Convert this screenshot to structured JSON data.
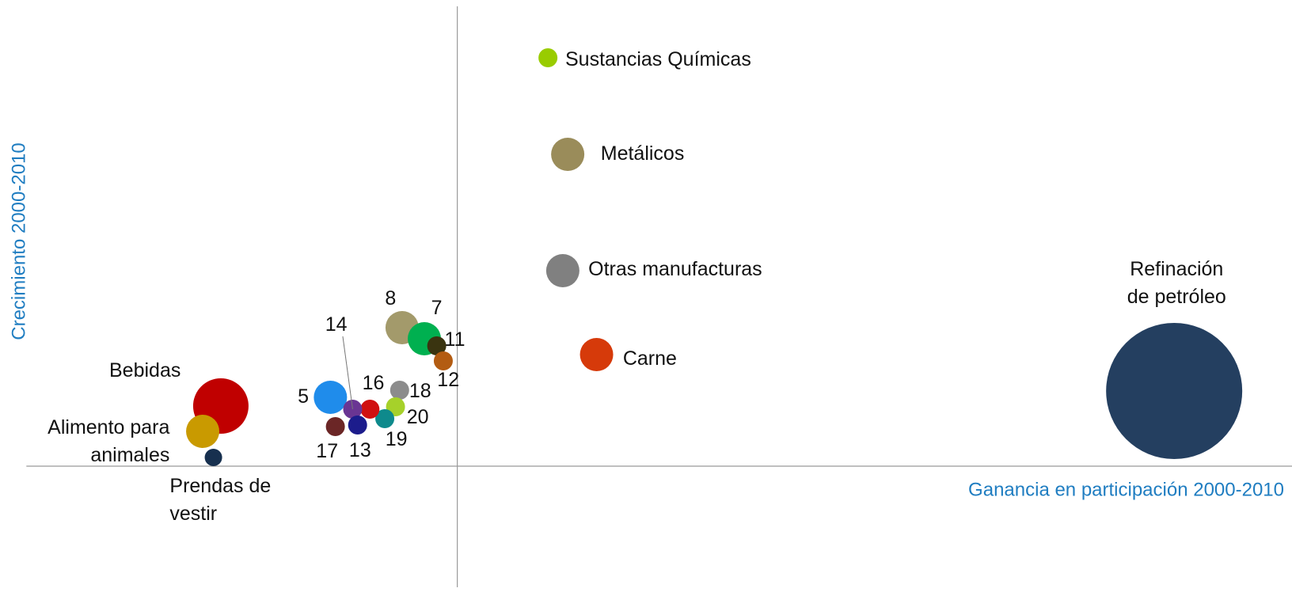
{
  "chart_data": {
    "type": "bubble",
    "x_label": "Ganancia en participación 2000-2010",
    "y_label": "Crecimiento 2000-2010",
    "xlim": [
      -52.3,
      101.3
    ],
    "ylim": [
      -15.3,
      58.1
    ],
    "points": [
      {
        "name": [
          "Sustancias Químicas"
        ],
        "x": 11.0,
        "y": 51.6,
        "size": 1.2,
        "color": "#99cc00"
      },
      {
        "name": [
          "Metálicos"
        ],
        "x": 13.4,
        "y": 39.4,
        "size": 2.1,
        "color": "#9a8c5a"
      },
      {
        "name": [
          "Otras manufacturas"
        ],
        "x": 12.8,
        "y": 24.7,
        "size": 2.1,
        "color": "#808080"
      },
      {
        "name": [
          "Carne"
        ],
        "x": 16.9,
        "y": 14.1,
        "size": 2.1,
        "color": "#d63a0a"
      },
      {
        "name": [
          "Refinación",
          "de petróleo"
        ],
        "x": 87.0,
        "y": 9.5,
        "size": 8.6,
        "color": "#243f60"
      },
      {
        "name": [
          "Bebidas"
        ],
        "x": -28.7,
        "y": 7.6,
        "size": 3.5,
        "color": "#c00000"
      },
      {
        "name": [
          "Alimento para",
          "animales"
        ],
        "x": -30.9,
        "y": 4.4,
        "size": 2.1,
        "color": "#c99a00"
      },
      {
        "name": [
          "Prendas de",
          "vestir"
        ],
        "x": -29.6,
        "y": 1.1,
        "size": 1.1,
        "color": "#17304f"
      },
      {
        "name": [
          "5"
        ],
        "x": -15.4,
        "y": 8.7,
        "size": 2.1,
        "color": "#1f8ceb"
      },
      {
        "name": [
          "8"
        ],
        "x": -6.7,
        "y": 17.5,
        "size": 2.1,
        "color": "#a39a6b"
      },
      {
        "name": [
          "7"
        ],
        "x": -4.0,
        "y": 16.1,
        "size": 2.1,
        "color": "#00b050"
      },
      {
        "name": [
          "11"
        ],
        "x": -2.5,
        "y": 15.2,
        "size": 1.2,
        "color": "#3a3410"
      },
      {
        "name": [
          "12"
        ],
        "x": -1.7,
        "y": 13.3,
        "size": 1.2,
        "color": "#b35c12"
      },
      {
        "name": [
          "18"
        ],
        "x": -7.0,
        "y": 9.6,
        "size": 1.2,
        "color": "#8c8c8c"
      },
      {
        "name": [
          "20"
        ],
        "x": -7.5,
        "y": 7.5,
        "size": 1.2,
        "color": "#a6d12a"
      },
      {
        "name": [
          "19"
        ],
        "x": -8.8,
        "y": 6.0,
        "size": 1.2,
        "color": "#0e8a8c"
      },
      {
        "name": [
          "16"
        ],
        "x": -10.6,
        "y": 7.2,
        "size": 1.2,
        "color": "#d01010"
      },
      {
        "name": [
          "14"
        ],
        "x": -12.7,
        "y": 7.2,
        "size": 1.2,
        "color": "#6a3593"
      },
      {
        "name": [
          "13"
        ],
        "x": -12.1,
        "y": 5.2,
        "size": 1.2,
        "color": "#1c1c8c"
      },
      {
        "name": [
          "17"
        ],
        "x": -14.8,
        "y": 5.0,
        "size": 1.2,
        "color": "#6b2626"
      }
    ]
  }
}
